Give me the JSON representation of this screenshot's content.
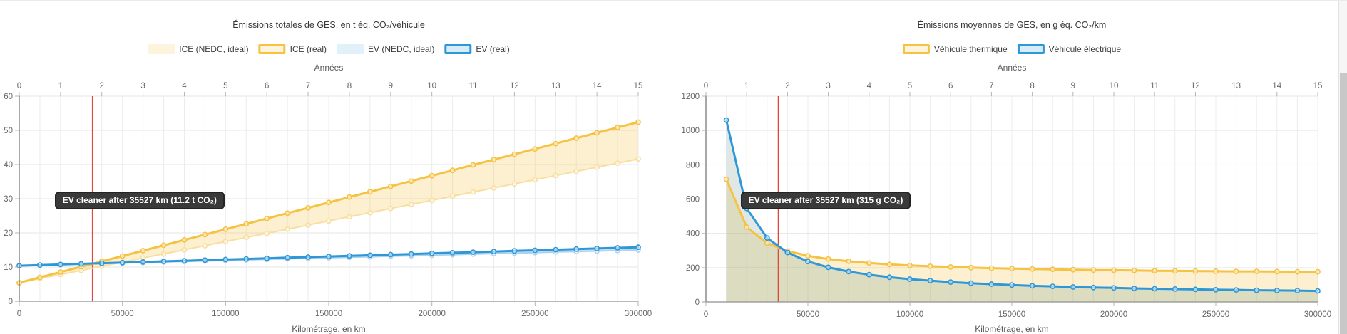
{
  "charts_ui": {
    "left": {
      "title": "Émissions totales de GES, en t éq. CO₂/véhicule",
      "top_axis_label": "Années",
      "xlabel": "Kilométrage, en km"
    },
    "right": {
      "title": "Émissions moyennes de GES, en g éq. CO₂/km",
      "top_axis_label": "Années",
      "xlabel": "Kilométrage, en km"
    }
  },
  "chart_data": [
    {
      "type": "line",
      "title": "Émissions totales de GES, en t éq. CO₂/véhicule",
      "xlabel": "Kilométrage, en km",
      "top_axis_label": "Années",
      "xlim": [
        0,
        300000
      ],
      "ylim": [
        0,
        60
      ],
      "x_start": 0,
      "x_step": 10000,
      "x_tick_values": [
        0,
        50000,
        100000,
        150000,
        200000,
        250000,
        300000
      ],
      "x_tick_labels": [
        "0",
        "50000",
        "100000",
        "150000",
        "200000",
        "250000",
        "300000"
      ],
      "year_tick_values": [
        0,
        1,
        2,
        3,
        4,
        5,
        6,
        7,
        8,
        9,
        10,
        11,
        12,
        13,
        14,
        15
      ],
      "year_tick_labels": [
        "0",
        "1",
        "2",
        "3",
        "4",
        "5",
        "6",
        "7",
        "8",
        "9",
        "10",
        "11",
        "12",
        "13",
        "14",
        "15"
      ],
      "y_tick_values": [
        0,
        10,
        20,
        30,
        40,
        50,
        60
      ],
      "y_tick_labels": [
        "0",
        "10",
        "20",
        "30",
        "40",
        "50",
        "60"
      ],
      "grid": true,
      "legend_position": "top",
      "series": [
        {
          "name": "ICE (NEDC, ideal)",
          "color": "#f8dfa0",
          "swatch": "fill",
          "line_width": 2,
          "values": [
            5.4,
            6.61,
            7.81,
            9.02,
            10.23,
            11.43,
            12.64,
            13.85,
            15.05,
            16.26,
            17.47,
            18.67,
            19.88,
            21.09,
            22.29,
            23.5,
            24.71,
            25.91,
            27.12,
            28.33,
            29.53,
            30.74,
            31.95,
            33.15,
            34.36,
            35.57,
            36.77,
            37.98,
            39.19,
            40.39,
            41.6
          ]
        },
        {
          "name": "ICE (real)",
          "color": "#f5c242",
          "swatch": "border",
          "line_width": 3,
          "values": [
            5.4,
            6.97,
            8.53,
            10.1,
            11.67,
            13.23,
            14.8,
            16.37,
            17.93,
            19.5,
            21.07,
            22.63,
            24.2,
            25.77,
            27.33,
            28.9,
            30.47,
            32.03,
            33.6,
            35.17,
            36.73,
            38.3,
            39.87,
            41.43,
            43.0,
            44.57,
            46.13,
            47.7,
            49.27,
            50.83,
            52.4
          ]
        },
        {
          "name": "EV (NEDC, ideal)",
          "color": "#abd3ee",
          "swatch": "fill",
          "line_width": 2,
          "values": [
            10.4,
            10.55,
            10.71,
            10.86,
            11.01,
            11.17,
            11.32,
            11.47,
            11.63,
            11.78,
            11.93,
            12.09,
            12.24,
            12.39,
            12.55,
            12.7,
            12.85,
            13.01,
            13.16,
            13.31,
            13.47,
            13.62,
            13.77,
            13.93,
            14.08,
            14.23,
            14.39,
            14.54,
            14.69,
            14.85,
            15.0
          ]
        },
        {
          "name": "EV (real)",
          "color": "#2e97d8",
          "swatch": "border",
          "line_width": 3,
          "values": [
            10.4,
            10.58,
            10.76,
            10.94,
            11.12,
            11.3,
            11.48,
            11.66,
            11.84,
            12.02,
            12.2,
            12.38,
            12.56,
            12.74,
            12.92,
            13.1,
            13.28,
            13.46,
            13.64,
            13.82,
            14.0,
            14.18,
            14.36,
            14.54,
            14.72,
            14.9,
            15.08,
            15.26,
            15.44,
            15.62,
            15.8
          ]
        }
      ],
      "bands": [
        {
          "lower": 0,
          "upper": 1,
          "fill": "rgba(245,194,66,0.25)"
        },
        {
          "lower": 2,
          "upper": 3,
          "fill": "rgba(46,151,216,0.28)"
        }
      ],
      "annotation": {
        "x": 35527,
        "text": "EV cleaner after 35527 km (11.2 t CO₂)",
        "line_color": "#e5463c"
      }
    },
    {
      "type": "line",
      "title": "Émissions moyennes de GES, en g éq. CO₂/km",
      "xlabel": "Kilométrage, en km",
      "top_axis_label": "Années",
      "xlim": [
        0,
        300000
      ],
      "ylim": [
        0,
        1200
      ],
      "x_start": 10000,
      "x_step": 10000,
      "x_tick_values": [
        0,
        50000,
        100000,
        150000,
        200000,
        250000,
        300000
      ],
      "x_tick_labels": [
        "0",
        "50000",
        "100000",
        "150000",
        "200000",
        "250000",
        "300000"
      ],
      "year_tick_values": [
        0,
        1,
        2,
        3,
        4,
        5,
        6,
        7,
        8,
        9,
        10,
        11,
        12,
        13,
        14,
        15
      ],
      "year_tick_labels": [
        "0",
        "1",
        "2",
        "3",
        "4",
        "5",
        "6",
        "7",
        "8",
        "9",
        "10",
        "11",
        "12",
        "13",
        "14",
        "15"
      ],
      "y_tick_values": [
        0,
        200,
        400,
        600,
        800,
        1000,
        1200
      ],
      "y_tick_labels": [
        "0",
        "200",
        "400",
        "600",
        "800",
        "1000",
        "1200"
      ],
      "grid": true,
      "legend_position": "top",
      "series": [
        {
          "name": "Véhicule thermique",
          "color": "#f5c242",
          "swatch": "border",
          "line_width": 3,
          "area_fill": "rgba(245,194,66,0.25)",
          "values": [
            715,
            436,
            343,
            297,
            269,
            250,
            237,
            227,
            219,
            213,
            208,
            204,
            200,
            197,
            194,
            192,
            190,
            188,
            186,
            185,
            184,
            182,
            181,
            180,
            179,
            178,
            178,
            177,
            176,
            176
          ]
        },
        {
          "name": "Véhicule électrique",
          "color": "#2e97d8",
          "swatch": "border",
          "line_width": 3,
          "area_fill": "rgba(110,150,140,0.22)",
          "values": [
            1060,
            545,
            373,
            288,
            236,
            202,
            177,
            159,
            144,
            133,
            124,
            116,
            109,
            104,
            99,
            94,
            91,
            87,
            84,
            82,
            79,
            77,
            75,
            73,
            71,
            70,
            68,
            67,
            66,
            64
          ]
        }
      ],
      "bands": [],
      "annotation": {
        "x": 35527,
        "text": "EV cleaner after 35527 km (315 g CO₂)",
        "line_color": "#e5463c"
      }
    }
  ],
  "scrollbar": {
    "present": "true"
  }
}
